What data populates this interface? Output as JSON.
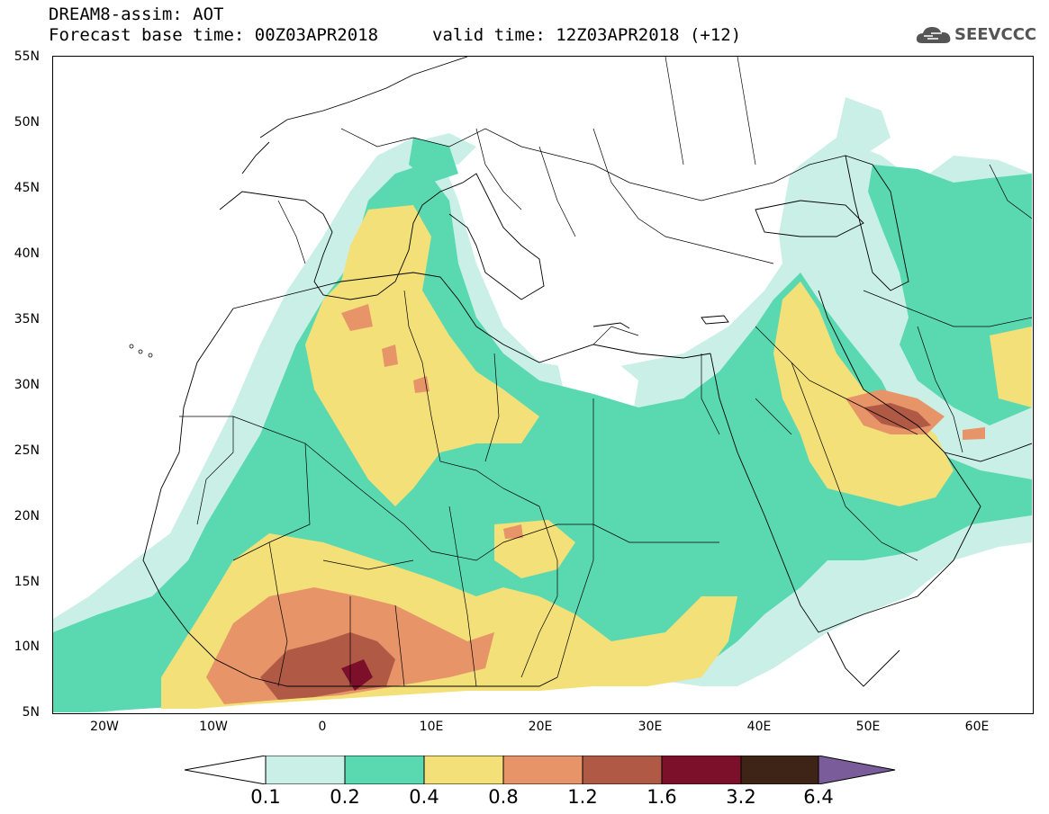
{
  "header": {
    "line1": "DREAM8-assim: AOT",
    "line2": "Forecast base time: 00Z03APR2018",
    "valid": "valid time: 12Z03APR2018 (+12)"
  },
  "logo": {
    "text": "SEEVCCC",
    "icon": "cloud-logo-icon"
  },
  "lat_ticks": [
    "55N",
    "50N",
    "45N",
    "40N",
    "35N",
    "30N",
    "25N",
    "20N",
    "15N",
    "10N",
    "5N"
  ],
  "lon_ticks": [
    "20W",
    "10W",
    "0",
    "10E",
    "20E",
    "30E",
    "40E",
    "50E",
    "60E"
  ],
  "colorbar": {
    "labels": [
      "0.1",
      "0.2",
      "0.4",
      "0.8",
      "1.2",
      "1.6",
      "3.2",
      "6.4"
    ],
    "colors": [
      "#ffffff",
      "#c9efe6",
      "#5ad9b1",
      "#f3e079",
      "#e69468",
      "#b05a46",
      "#7c0f2a",
      "#3e2416",
      "#7b5c9a"
    ]
  },
  "map": {
    "variable": "AOT",
    "lon_range": [
      -25,
      65
    ],
    "lat_range": [
      5,
      55
    ],
    "palette": {
      "very_light": "#c9efe6",
      "teal": "#5ad9b1",
      "yellow": "#f3e079",
      "orange": "#e69468",
      "brown": "#b05a46",
      "dark": "#7c0f2a"
    }
  }
}
